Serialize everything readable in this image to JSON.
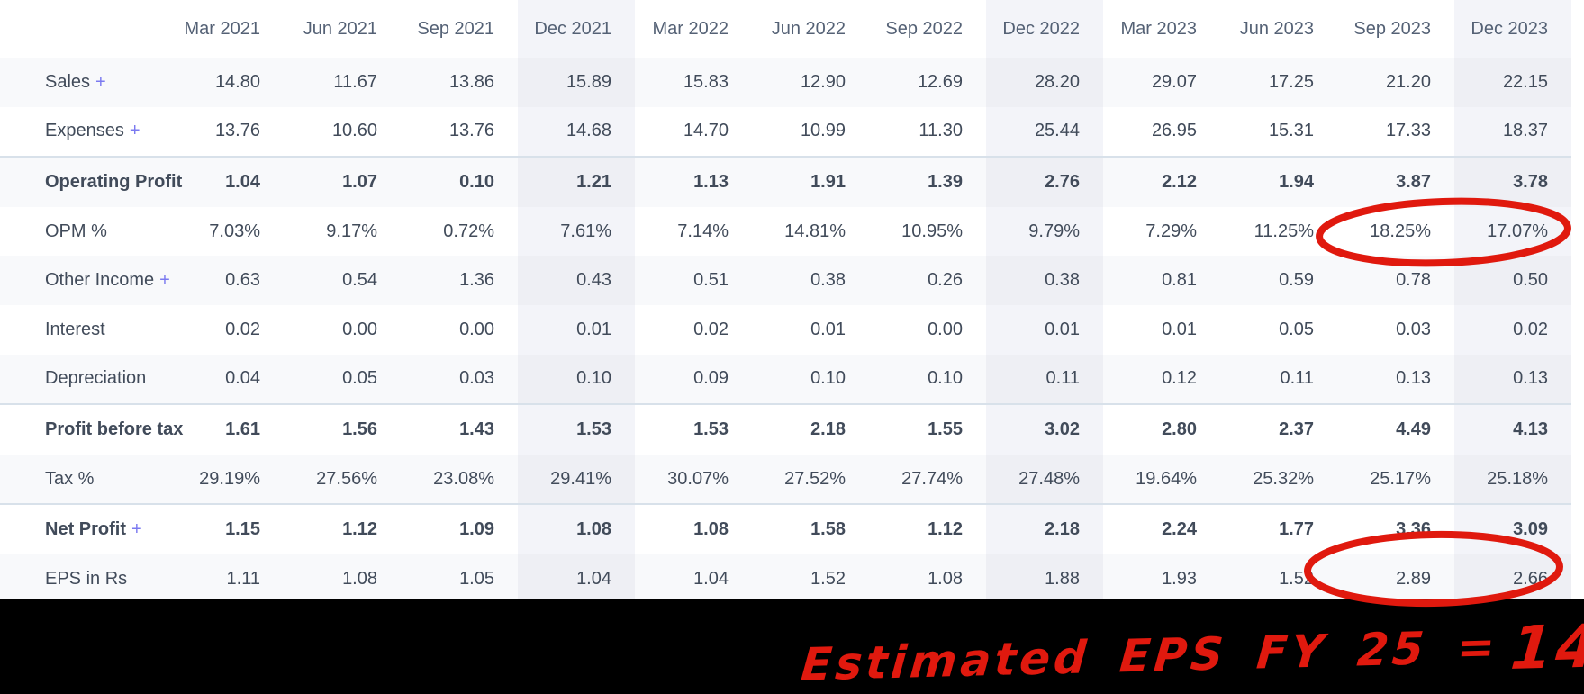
{
  "table": {
    "columns": [
      "Mar 2021",
      "Jun 2021",
      "Sep 2021",
      "Dec 2021",
      "Mar 2022",
      "Jun 2022",
      "Sep 2022",
      "Dec 2022",
      "Mar 2023",
      "Jun 2023",
      "Sep 2023",
      "Dec 2023"
    ],
    "highlighted_columns": [
      "Dec 2021",
      "Dec 2022",
      "Dec 2023"
    ],
    "highlighted_column_indexes": [
      3,
      7,
      11
    ],
    "rows": [
      {
        "label": "Sales",
        "expand": "+",
        "bold": false,
        "values": [
          "14.80",
          "11.67",
          "13.86",
          "15.89",
          "15.83",
          "12.90",
          "12.69",
          "28.20",
          "29.07",
          "17.25",
          "21.20",
          "22.15"
        ]
      },
      {
        "label": "Expenses",
        "expand": "+",
        "bold": false,
        "values": [
          "13.76",
          "10.60",
          "13.76",
          "14.68",
          "14.70",
          "10.99",
          "11.30",
          "25.44",
          "26.95",
          "15.31",
          "17.33",
          "18.37"
        ]
      },
      {
        "label": "Operating Profit",
        "expand": "",
        "bold": true,
        "values": [
          "1.04",
          "1.07",
          "0.10",
          "1.21",
          "1.13",
          "1.91",
          "1.39",
          "2.76",
          "2.12",
          "1.94",
          "3.87",
          "3.78"
        ]
      },
      {
        "label": "OPM %",
        "expand": "",
        "bold": false,
        "values": [
          "7.03%",
          "9.17%",
          "0.72%",
          "7.61%",
          "7.14%",
          "14.81%",
          "10.95%",
          "9.79%",
          "7.29%",
          "11.25%",
          "18.25%",
          "17.07%"
        ]
      },
      {
        "label": "Other Income",
        "expand": "+",
        "bold": false,
        "values": [
          "0.63",
          "0.54",
          "1.36",
          "0.43",
          "0.51",
          "0.38",
          "0.26",
          "0.38",
          "0.81",
          "0.59",
          "0.78",
          "0.50"
        ]
      },
      {
        "label": "Interest",
        "expand": "",
        "bold": false,
        "values": [
          "0.02",
          "0.00",
          "0.00",
          "0.01",
          "0.02",
          "0.01",
          "0.00",
          "0.01",
          "0.01",
          "0.05",
          "0.03",
          "0.02"
        ]
      },
      {
        "label": "Depreciation",
        "expand": "",
        "bold": false,
        "values": [
          "0.04",
          "0.05",
          "0.03",
          "0.10",
          "0.09",
          "0.10",
          "0.10",
          "0.11",
          "0.12",
          "0.11",
          "0.13",
          "0.13"
        ]
      },
      {
        "label": "Profit before tax",
        "expand": "",
        "bold": true,
        "values": [
          "1.61",
          "1.56",
          "1.43",
          "1.53",
          "1.53",
          "2.18",
          "1.55",
          "3.02",
          "2.80",
          "2.37",
          "4.49",
          "4.13"
        ]
      },
      {
        "label": "Tax %",
        "expand": "",
        "bold": false,
        "values": [
          "29.19%",
          "27.56%",
          "23.08%",
          "29.41%",
          "30.07%",
          "27.52%",
          "27.74%",
          "27.48%",
          "19.64%",
          "25.32%",
          "25.17%",
          "25.18%"
        ]
      },
      {
        "label": "Net Profit",
        "expand": "+",
        "bold": true,
        "values": [
          "1.15",
          "1.12",
          "1.09",
          "1.08",
          "1.08",
          "1.58",
          "1.12",
          "2.18",
          "2.24",
          "1.77",
          "3.36",
          "3.09"
        ]
      },
      {
        "label": "EPS in Rs",
        "expand": "",
        "bold": false,
        "values": [
          "1.11",
          "1.08",
          "1.05",
          "1.04",
          "1.04",
          "1.52",
          "1.08",
          "1.88",
          "1.93",
          "1.52",
          "2.89",
          "2.66"
        ]
      }
    ]
  },
  "annotations": {
    "pen_color": "#e0190e",
    "circles": [
      {
        "row": "OPM %",
        "columns": [
          "Sep 2023",
          "Dec 2023"
        ],
        "circled_values": [
          "18.25%",
          "17.07%"
        ]
      },
      {
        "row": "EPS in Rs",
        "columns": [
          "Sep 2023",
          "Dec 2023"
        ],
        "circled_values": [
          "2.89",
          "2.66"
        ]
      }
    ],
    "note_text": "Estimated EPS FY 25 =",
    "note_value": "14"
  },
  "colors": {
    "stripe_row": "#f8f9fb",
    "highlight_column": "#f3f4f9",
    "bold_row_border": "#d8e1ea",
    "header_text": "#546175",
    "body_text": "#414b5a",
    "bold_text": "#1e2733",
    "expand_plus": "#7b7af0",
    "bottom_strip": "#000000"
  }
}
